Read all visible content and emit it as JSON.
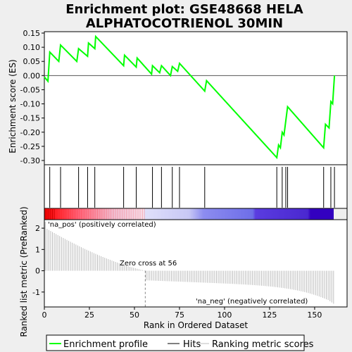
{
  "chart_data": {
    "type": "line",
    "title_line1": "Enrichment plot: GSE48668 HELA",
    "title_line2": "ALPHATOCOTRIENOL 30MIN",
    "xlabel": "Rank in Ordered Dataset",
    "ylabel_top": "Enrichment score (ES)",
    "ylabel_bottom": "Ranked list metric (PreRanked)",
    "xlim": [
      0,
      168
    ],
    "ylim_top": [
      -0.315,
      0.155
    ],
    "ylim_bottom": [
      -1.7,
      2.4
    ],
    "x_ticks": [
      0,
      25,
      50,
      75,
      100,
      125,
      150
    ],
    "y_ticks_top": [
      0.15,
      0.1,
      0.05,
      0.0,
      -0.05,
      -0.1,
      -0.15,
      -0.2,
      -0.25,
      -0.3
    ],
    "y_ticks_top_labels": [
      "0.15",
      "0.10",
      "0.05",
      "0.00",
      "-0.05",
      "-0.10",
      "-0.15",
      "-0.20",
      "-0.25",
      "-0.30"
    ],
    "y_ticks_bottom": [
      2,
      1,
      0,
      -1
    ],
    "y_ticks_bottom_labels": [
      "2",
      "1",
      "0",
      "-1"
    ],
    "enrichment_profile": [
      [
        0,
        -0.005
      ],
      [
        2,
        -0.02
      ],
      [
        3,
        0.083
      ],
      [
        8,
        0.05
      ],
      [
        9,
        0.108
      ],
      [
        18,
        0.05
      ],
      [
        19,
        0.095
      ],
      [
        24,
        0.068
      ],
      [
        24.5,
        0.115
      ],
      [
        28,
        0.095
      ],
      [
        28.5,
        0.138
      ],
      [
        44,
        0.035
      ],
      [
        44.5,
        0.072
      ],
      [
        51,
        0.03
      ],
      [
        51.5,
        0.062
      ],
      [
        59.5,
        0.005
      ],
      [
        60,
        0.035
      ],
      [
        64,
        0.01
      ],
      [
        65,
        0.035
      ],
      [
        70,
        0.0
      ],
      [
        71,
        0.032
      ],
      [
        74,
        0.015
      ],
      [
        75,
        0.043
      ],
      [
        89,
        -0.055
      ],
      [
        90,
        -0.018
      ],
      [
        129,
        -0.29
      ],
      [
        130,
        -0.245
      ],
      [
        131,
        -0.255
      ],
      [
        132,
        -0.2
      ],
      [
        133,
        -0.21
      ],
      [
        135,
        -0.11
      ],
      [
        155,
        -0.255
      ],
      [
        156,
        -0.172
      ],
      [
        158,
        -0.185
      ],
      [
        159,
        -0.092
      ],
      [
        160,
        -0.1
      ],
      [
        161,
        0.0
      ]
    ],
    "hits": [
      3,
      9,
      19,
      24,
      28,
      44,
      51,
      60,
      65,
      71,
      75,
      89,
      129,
      132,
      134,
      135,
      155,
      159,
      161
    ],
    "ranking_metric_max": 2.3,
    "ranking_metric_min": -1.55,
    "zero_cross": 56,
    "zero_cross_label": "Zero cross at 56",
    "pos_label": "'na_pos' (positively correlated)",
    "neg_label": "'na_neg' (negatively correlated)",
    "legend": [
      "Enrichment profile",
      "Hits",
      "Ranking metric scores"
    ],
    "colors": {
      "profile": "#00ff00",
      "hits": "#000000",
      "metric": "#bebebe",
      "pos_label": "#ff0000",
      "neg_label": "#0000ff",
      "zero_line": "#808080"
    }
  }
}
